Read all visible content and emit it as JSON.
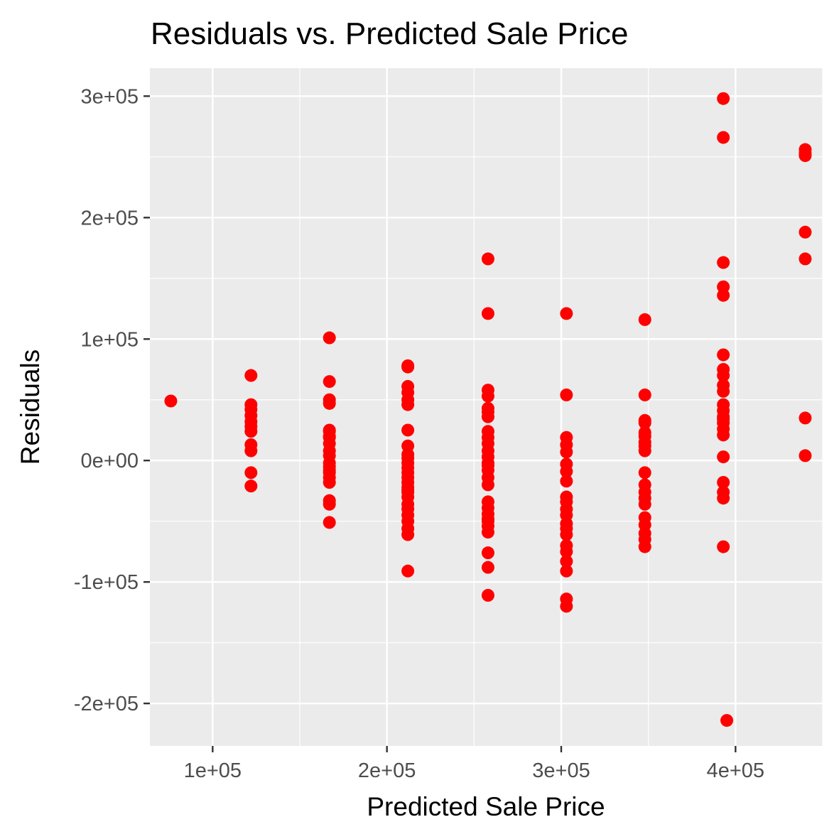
{
  "chart_data": {
    "type": "scatter",
    "title": "Residuals vs. Predicted Sale Price",
    "xlabel": "Predicted Sale Price",
    "ylabel": "Residuals",
    "xlim": [
      64000,
      450000
    ],
    "ylim": [
      -235000,
      323000
    ],
    "x_ticks": [
      100000,
      200000,
      300000,
      400000
    ],
    "x_tick_labels": [
      "1e+05",
      "2e+05",
      "3e+05",
      "4e+05"
    ],
    "y_ticks": [
      -200000,
      -100000,
      0,
      100000,
      200000,
      300000
    ],
    "y_tick_labels": [
      "-2e+05",
      "-1e+05",
      "0e+00",
      "1e+05",
      "2e+05",
      "3e+05"
    ],
    "grid": true,
    "legend": "none",
    "colors": {
      "point": "#ff0000",
      "panel": "#ebebeb",
      "grid": "#ffffff",
      "tick": "#333333",
      "tick_label": "#4d4d4d"
    },
    "series": [
      {
        "x": [
          76000,
          122000,
          122000,
          122000,
          122000,
          122000,
          122000,
          122000,
          122000,
          122000,
          122000,
          122000,
          167000,
          167000,
          167000,
          167000,
          167000,
          167000,
          167000,
          167000,
          167000,
          167000,
          167000,
          167000,
          167000,
          167000,
          167000,
          167000,
          167000,
          167000,
          167000,
          167000,
          212000,
          212000,
          212000,
          212000,
          212000,
          212000,
          212000,
          212000,
          212000,
          212000,
          212000,
          212000,
          212000,
          212000,
          212000,
          212000,
          212000,
          212000,
          212000,
          212000,
          212000,
          212000,
          212000,
          212000,
          212000,
          212000,
          258000,
          258000,
          258000,
          258000,
          258000,
          258000,
          258000,
          258000,
          258000,
          258000,
          258000,
          258000,
          258000,
          258000,
          258000,
          258000,
          258000,
          258000,
          258000,
          258000,
          258000,
          258000,
          258000,
          258000,
          258000,
          258000,
          258000,
          303000,
          303000,
          303000,
          303000,
          303000,
          303000,
          303000,
          303000,
          303000,
          303000,
          303000,
          303000,
          303000,
          303000,
          303000,
          303000,
          303000,
          303000,
          303000,
          303000,
          303000,
          348000,
          348000,
          348000,
          348000,
          348000,
          348000,
          348000,
          348000,
          348000,
          348000,
          348000,
          348000,
          348000,
          348000,
          348000,
          348000,
          348000,
          348000,
          348000,
          393000,
          393000,
          393000,
          393000,
          393000,
          393000,
          393000,
          393000,
          393000,
          393000,
          393000,
          393000,
          393000,
          393000,
          393000,
          393000,
          393000,
          393000,
          393000,
          393000,
          393000,
          393000,
          395000,
          440000,
          440000,
          440000,
          440000,
          440000,
          440000,
          440000
        ],
        "y": [
          49000,
          70000,
          46000,
          42000,
          37000,
          32000,
          28000,
          24000,
          13000,
          8000,
          -10000,
          -21000,
          101000,
          65000,
          50000,
          47000,
          25000,
          24000,
          19000,
          14000,
          8000,
          4000,
          -2000,
          -5000,
          -10000,
          -14000,
          -18000,
          -33000,
          -36000,
          -51000,
          20000,
          -8000,
          78000,
          77000,
          61000,
          56000,
          50000,
          46000,
          25000,
          12000,
          5000,
          2000,
          -2000,
          -6000,
          -10000,
          -14000,
          -18000,
          -22000,
          -26000,
          -30000,
          -36000,
          -40000,
          -45000,
          -50000,
          -56000,
          -61000,
          -91000,
          -24000,
          166000,
          121000,
          58000,
          53000,
          43000,
          36000,
          24000,
          19000,
          14000,
          8000,
          3000,
          -2000,
          -8000,
          -14000,
          -20000,
          -34000,
          -39000,
          -44000,
          -50000,
          -54000,
          -59000,
          -76000,
          -88000,
          -111000,
          40000,
          -4000,
          -48000,
          121000,
          54000,
          19000,
          13000,
          7000,
          -3000,
          -9000,
          -17000,
          -30000,
          -34000,
          -40000,
          -45000,
          -52000,
          -56000,
          -61000,
          -70000,
          -75000,
          -83000,
          -91000,
          -114000,
          -120000,
          116000,
          54000,
          33000,
          31000,
          23000,
          20000,
          15000,
          12000,
          8000,
          -10000,
          -20000,
          -26000,
          -31000,
          -36000,
          -47000,
          -53000,
          -60000,
          -65000,
          -71000,
          298000,
          266000,
          163000,
          143000,
          136000,
          87000,
          75000,
          70000,
          62000,
          57000,
          46000,
          41000,
          36000,
          31000,
          26000,
          3000,
          -18000,
          -26000,
          -31000,
          -71000,
          34000,
          21000,
          -214000,
          256000,
          251000,
          188000,
          166000,
          35000,
          4000,
          253000
        ]
      }
    ]
  }
}
